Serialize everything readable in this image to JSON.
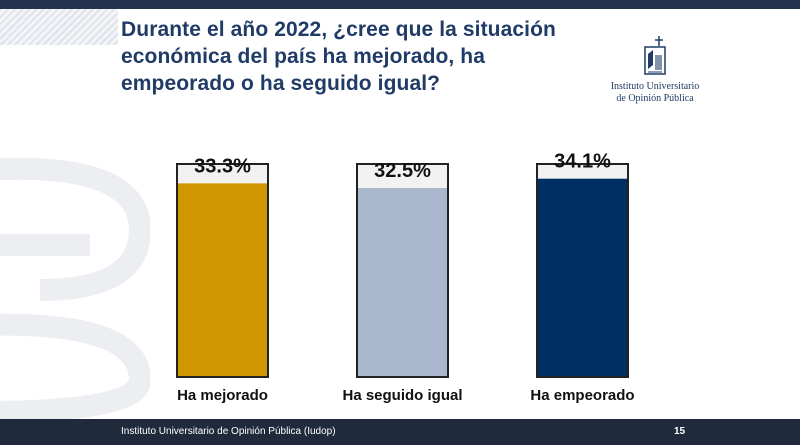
{
  "title": "Durante el año 2022, ¿cree que la situación económica del país ha mejorado, ha empeorado o ha seguido igual?",
  "logo": {
    "line1": "Instituto Universitario",
    "line2": "de Opinión Pública",
    "mark_text": "IUDOP"
  },
  "footer": {
    "text": "Instituto Universitario de Opinión Pública (Iudop)",
    "page_number": "15"
  },
  "colors": {
    "title": "#1f3b66",
    "frame": "#222222",
    "bar_background": "#f2f2f2",
    "footer_bg": "#1f2a3d"
  },
  "chart_data": {
    "type": "bar",
    "categories": [
      "Ha mejorado",
      "Ha seguido igual",
      "Ha empeorado"
    ],
    "values": [
      33.3,
      32.5,
      34.1
    ],
    "value_labels": [
      "33.3%",
      "32.5%",
      "34.1%"
    ],
    "colors": [
      "#d09600",
      "#a9b8cc",
      "#003063"
    ],
    "ylim": [
      0,
      100
    ],
    "grid": false,
    "legend": "none",
    "style": "filled-thermometer-bars"
  }
}
